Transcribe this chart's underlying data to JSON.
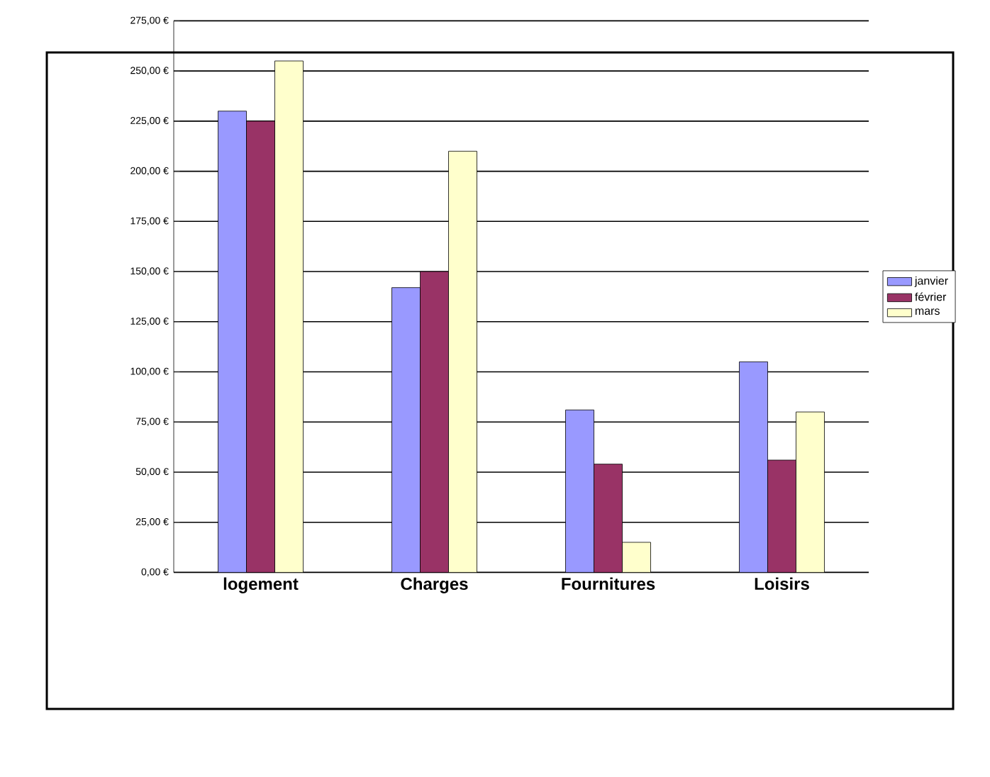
{
  "chart_data": {
    "type": "bar",
    "categories": [
      "logement",
      "Charges",
      "Fournitures",
      "Loisirs"
    ],
    "series": [
      {
        "name": "janvier",
        "color": "#9999ff",
        "values": [
          230,
          142,
          81,
          105
        ]
      },
      {
        "name": "février",
        "color": "#993366",
        "values": [
          225,
          150,
          54,
          56
        ]
      },
      {
        "name": "mars",
        "color": "#ffffcc",
        "values": [
          255,
          210,
          15,
          80
        ]
      }
    ],
    "ylim": [
      0,
      275
    ],
    "yticks": [
      {
        "value": 0,
        "label": "0,00 €"
      },
      {
        "value": 25,
        "label": "25,00 €"
      },
      {
        "value": 50,
        "label": "50,00 €"
      },
      {
        "value": 75,
        "label": "75,00 €"
      },
      {
        "value": 100,
        "label": "100,00 €"
      },
      {
        "value": 125,
        "label": "125,00 €"
      },
      {
        "value": 150,
        "label": "150,00 €"
      },
      {
        "value": 175,
        "label": "175,00 €"
      },
      {
        "value": 200,
        "label": "200,00 €"
      },
      {
        "value": 225,
        "label": "225,00 €"
      },
      {
        "value": 250,
        "label": "250,00 €"
      },
      {
        "value": 275,
        "label": "275,00 €"
      }
    ],
    "grid": "y",
    "legend": "right"
  }
}
